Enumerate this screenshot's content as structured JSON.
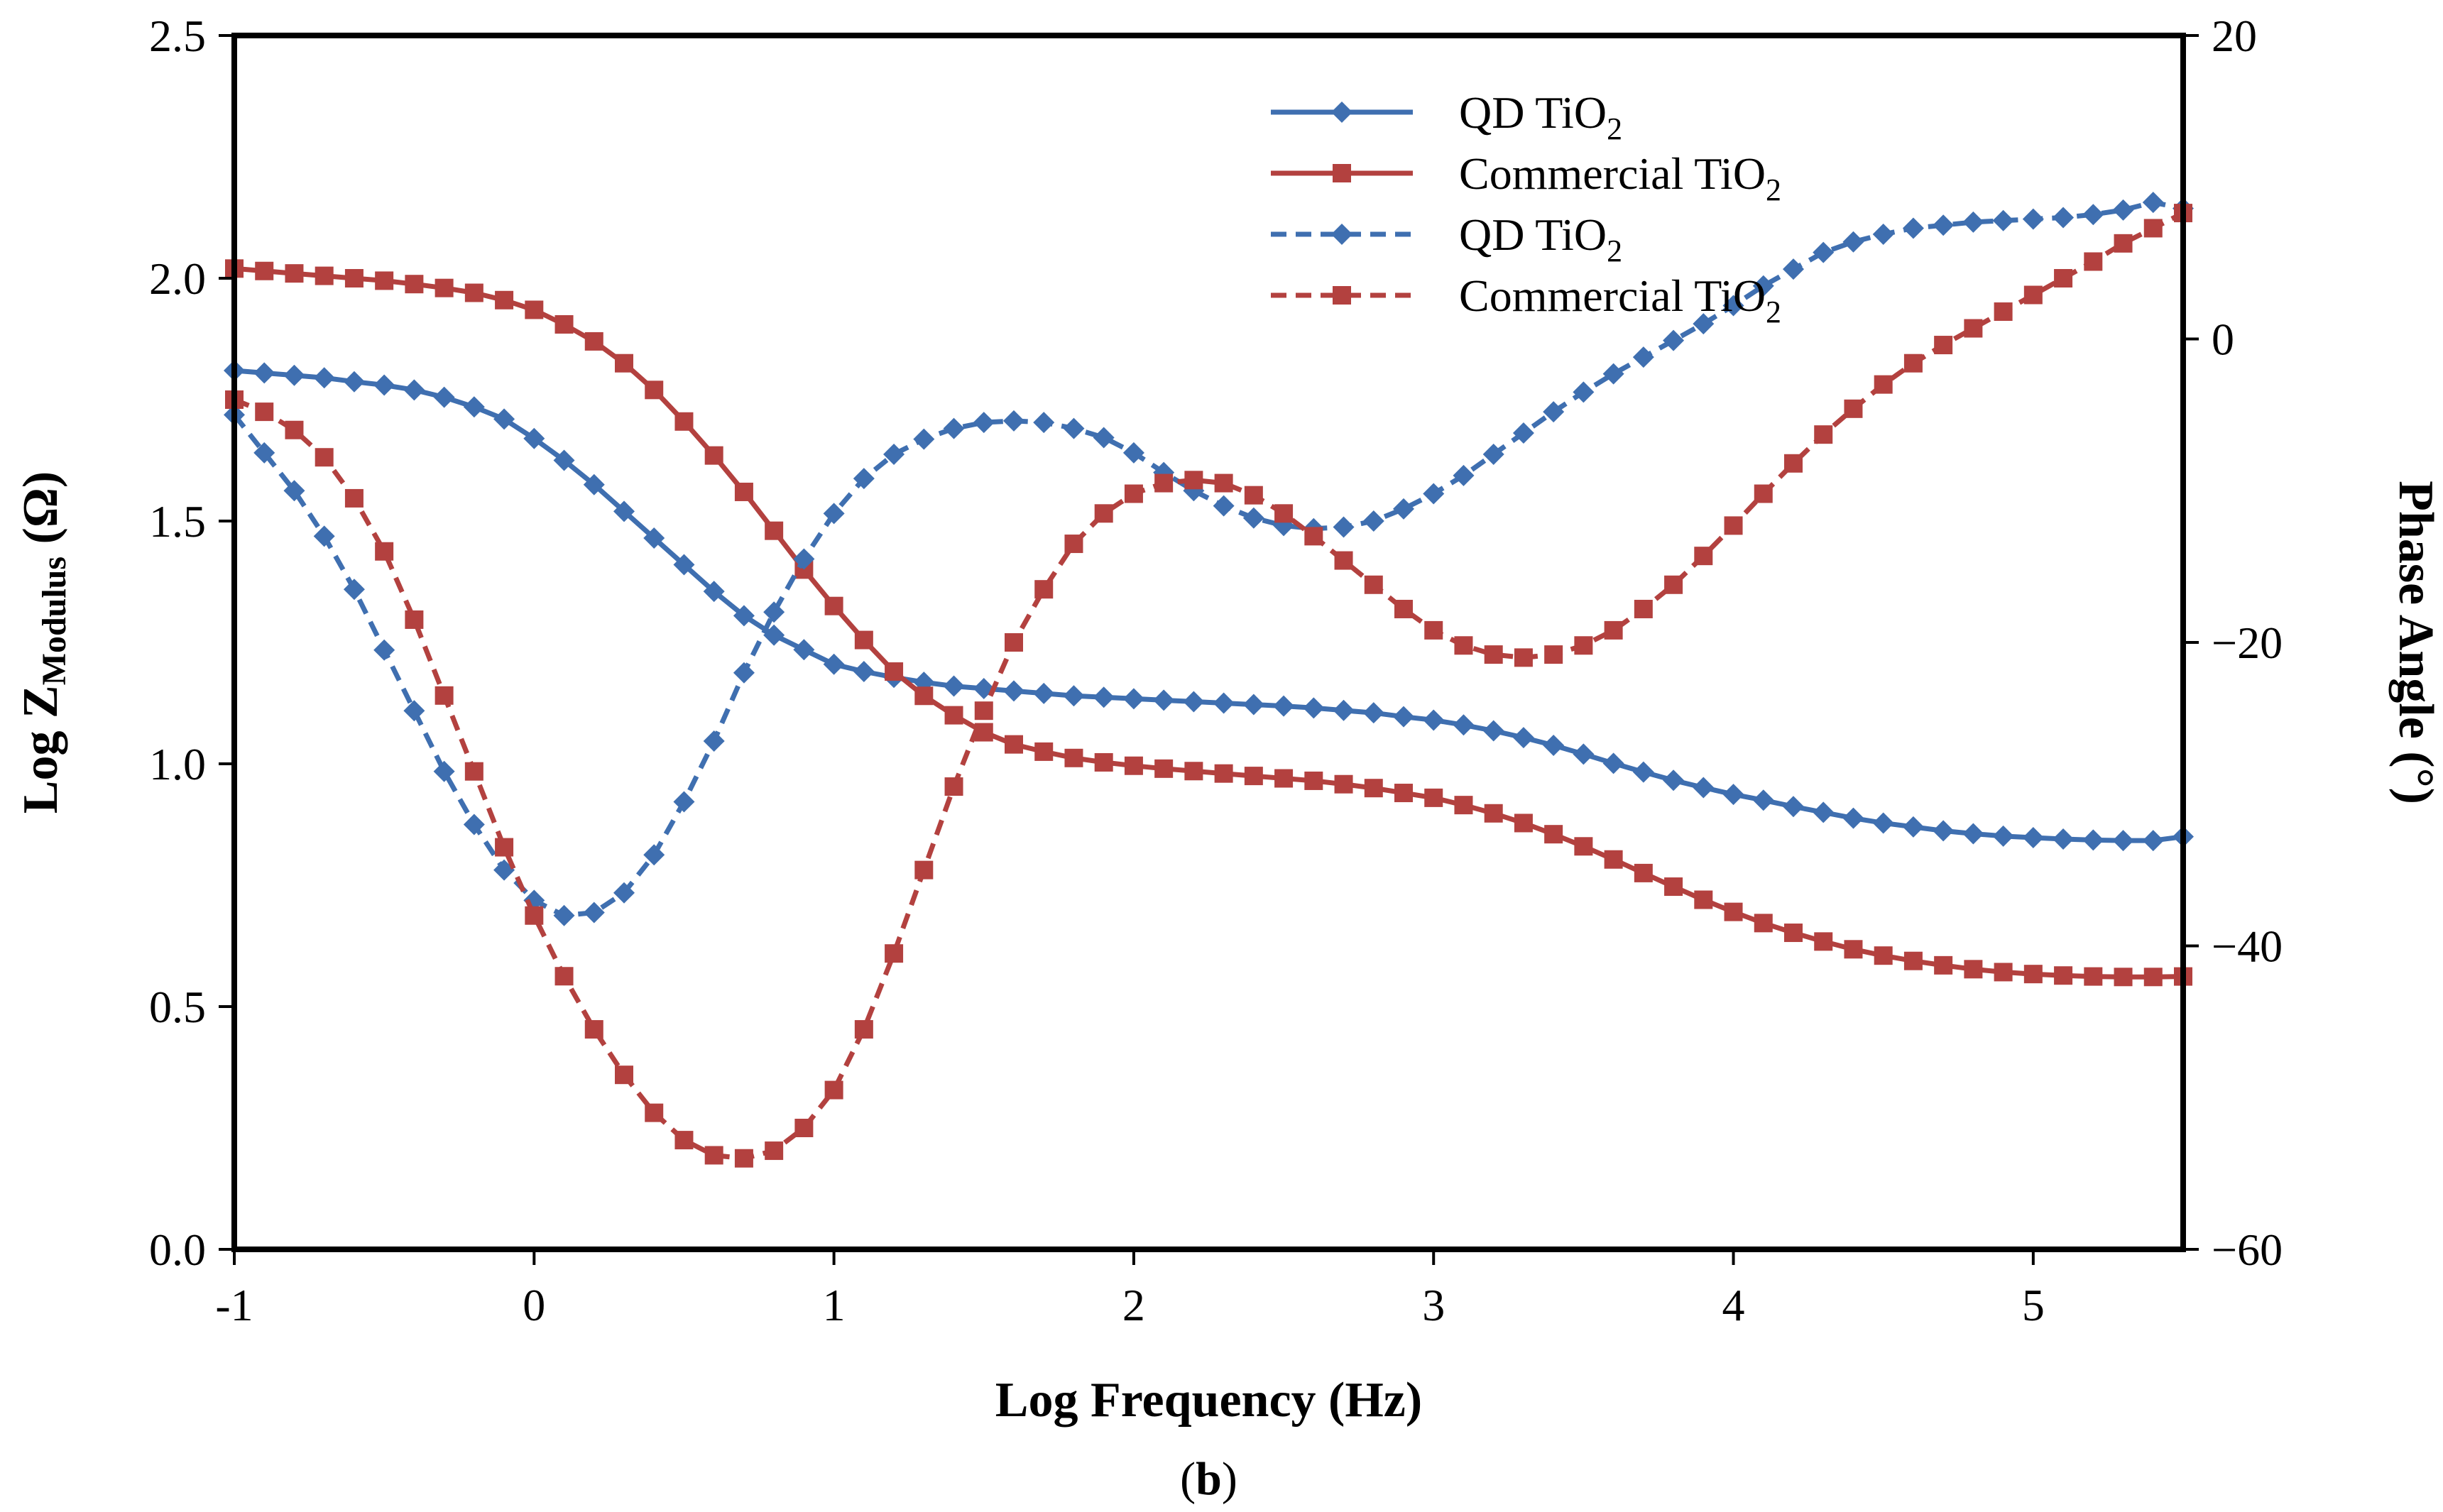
{
  "chart_data": {
    "type": "line",
    "panel_label": "b",
    "xlabel": "Log Frequency (Hz)",
    "ylabel_left": {
      "base": "Log Z",
      "subscript": "Modulus",
      "suffix": " (Ω)"
    },
    "ylabel_right": "Phase Angle (°)",
    "xlim": [
      -1,
      5.5
    ],
    "ylim_left": [
      0,
      2.5
    ],
    "ylim_right": [
      -60,
      20
    ],
    "x_ticks": [
      -1,
      0,
      1,
      2,
      3,
      4,
      5
    ],
    "x_tick_labels": [
      "-1",
      "0",
      "1",
      "2",
      "3",
      "4",
      "5"
    ],
    "y_left_ticks": [
      0,
      0.5,
      1,
      1.5,
      2,
      2.5
    ],
    "y_left_tick_labels": [
      "0.0",
      "0.5",
      "1.0",
      "1.5",
      "2.0",
      "2.5"
    ],
    "y_right_ticks": [
      -60,
      -40,
      -20,
      0,
      20
    ],
    "y_right_tick_labels": [
      "−60",
      "−40",
      "−20",
      "0",
      "20"
    ],
    "grid": false,
    "legend_position": "top-right",
    "colors": {
      "blue": "#3f6fb0",
      "red": "#b3413f"
    },
    "series": [
      {
        "id": "qd-modulus",
        "name": "QD TiO",
        "name_sub": "2",
        "axis": "left",
        "style": "solid",
        "marker": "diamond",
        "color": "#3f6fb0",
        "points": [
          [
            -1,
            1.81
          ],
          [
            -0.9,
            1.805
          ],
          [
            -0.8,
            1.8
          ],
          [
            -0.7,
            1.795
          ],
          [
            -0.6,
            1.787
          ],
          [
            -0.5,
            1.78
          ],
          [
            -0.4,
            1.77
          ],
          [
            -0.3,
            1.755
          ],
          [
            -0.2,
            1.735
          ],
          [
            -0.1,
            1.71
          ],
          [
            0,
            1.67
          ],
          [
            0.1,
            1.625
          ],
          [
            0.2,
            1.575
          ],
          [
            0.3,
            1.52
          ],
          [
            0.4,
            1.465
          ],
          [
            0.5,
            1.41
          ],
          [
            0.6,
            1.355
          ],
          [
            0.7,
            1.305
          ],
          [
            0.8,
            1.265
          ],
          [
            0.9,
            1.235
          ],
          [
            1,
            1.205
          ],
          [
            1.1,
            1.19
          ],
          [
            1.2,
            1.178
          ],
          [
            1.3,
            1.168
          ],
          [
            1.4,
            1.16
          ],
          [
            1.5,
            1.155
          ],
          [
            1.6,
            1.15
          ],
          [
            1.7,
            1.145
          ],
          [
            1.8,
            1.14
          ],
          [
            1.9,
            1.137
          ],
          [
            2,
            1.134
          ],
          [
            2.1,
            1.131
          ],
          [
            2.2,
            1.128
          ],
          [
            2.3,
            1.125
          ],
          [
            2.4,
            1.122
          ],
          [
            2.5,
            1.119
          ],
          [
            2.6,
            1.115
          ],
          [
            2.7,
            1.11
          ],
          [
            2.8,
            1.105
          ],
          [
            2.9,
            1.097
          ],
          [
            3,
            1.09
          ],
          [
            3.1,
            1.08
          ],
          [
            3.2,
            1.068
          ],
          [
            3.3,
            1.054
          ],
          [
            3.4,
            1.038
          ],
          [
            3.5,
            1.02
          ],
          [
            3.6,
            1.001
          ],
          [
            3.7,
            0.983
          ],
          [
            3.8,
            0.966
          ],
          [
            3.9,
            0.951
          ],
          [
            4,
            0.937
          ],
          [
            4.1,
            0.925
          ],
          [
            4.2,
            0.912
          ],
          [
            4.3,
            0.9
          ],
          [
            4.4,
            0.888
          ],
          [
            4.5,
            0.878
          ],
          [
            4.6,
            0.87
          ],
          [
            4.7,
            0.862
          ],
          [
            4.8,
            0.856
          ],
          [
            4.9,
            0.851
          ],
          [
            5,
            0.848
          ],
          [
            5.1,
            0.845
          ],
          [
            5.2,
            0.843
          ],
          [
            5.3,
            0.842
          ],
          [
            5.4,
            0.842
          ],
          [
            5.5,
            0.85
          ]
        ]
      },
      {
        "id": "commercial-modulus",
        "name": "Commercial TiO",
        "name_sub": "2",
        "axis": "left",
        "style": "solid",
        "marker": "square",
        "color": "#b3413f",
        "points": [
          [
            -1,
            2.02
          ],
          [
            -0.9,
            2.015
          ],
          [
            -0.8,
            2.01
          ],
          [
            -0.7,
            2.005
          ],
          [
            -0.6,
            2
          ],
          [
            -0.5,
            1.995
          ],
          [
            -0.4,
            1.988
          ],
          [
            -0.3,
            1.98
          ],
          [
            -0.2,
            1.97
          ],
          [
            -0.1,
            1.955
          ],
          [
            0,
            1.935
          ],
          [
            0.1,
            1.905
          ],
          [
            0.2,
            1.87
          ],
          [
            0.3,
            1.825
          ],
          [
            0.4,
            1.77
          ],
          [
            0.5,
            1.705
          ],
          [
            0.6,
            1.635
          ],
          [
            0.7,
            1.56
          ],
          [
            0.8,
            1.48
          ],
          [
            0.9,
            1.4
          ],
          [
            1,
            1.325
          ],
          [
            1.1,
            1.255
          ],
          [
            1.2,
            1.19
          ],
          [
            1.3,
            1.14
          ],
          [
            1.4,
            1.1
          ],
          [
            1.5,
            1.065
          ],
          [
            1.6,
            1.04
          ],
          [
            1.7,
            1.025
          ],
          [
            1.8,
            1.012
          ],
          [
            1.9,
            1.003
          ],
          [
            2,
            0.996
          ],
          [
            2.1,
            0.99
          ],
          [
            2.2,
            0.985
          ],
          [
            2.3,
            0.98
          ],
          [
            2.4,
            0.975
          ],
          [
            2.5,
            0.97
          ],
          [
            2.6,
            0.965
          ],
          [
            2.7,
            0.958
          ],
          [
            2.8,
            0.95
          ],
          [
            2.9,
            0.94
          ],
          [
            3,
            0.93
          ],
          [
            3.1,
            0.915
          ],
          [
            3.2,
            0.898
          ],
          [
            3.3,
            0.878
          ],
          [
            3.4,
            0.855
          ],
          [
            3.5,
            0.83
          ],
          [
            3.6,
            0.803
          ],
          [
            3.7,
            0.775
          ],
          [
            3.8,
            0.747
          ],
          [
            3.9,
            0.72
          ],
          [
            4,
            0.695
          ],
          [
            4.1,
            0.672
          ],
          [
            4.2,
            0.652
          ],
          [
            4.3,
            0.634
          ],
          [
            4.4,
            0.618
          ],
          [
            4.5,
            0.605
          ],
          [
            4.6,
            0.594
          ],
          [
            4.7,
            0.585
          ],
          [
            4.8,
            0.577
          ],
          [
            4.9,
            0.571
          ],
          [
            5,
            0.567
          ],
          [
            5.1,
            0.564
          ],
          [
            5.2,
            0.562
          ],
          [
            5.3,
            0.561
          ],
          [
            5.4,
            0.561
          ],
          [
            5.5,
            0.562
          ]
        ]
      },
      {
        "id": "qd-phase",
        "name": "QD TiO",
        "name_sub": "2",
        "axis": "right",
        "style": "dashed",
        "marker": "diamond",
        "color": "#3f6fb0",
        "points": [
          [
            -1,
            -5
          ],
          [
            -0.9,
            -7.5
          ],
          [
            -0.8,
            -10
          ],
          [
            -0.7,
            -13
          ],
          [
            -0.6,
            -16.5
          ],
          [
            -0.5,
            -20.5
          ],
          [
            -0.4,
            -24.5
          ],
          [
            -0.3,
            -28.5
          ],
          [
            -0.2,
            -32
          ],
          [
            -0.1,
            -35
          ],
          [
            0,
            -37
          ],
          [
            0.1,
            -38
          ],
          [
            0.2,
            -37.8
          ],
          [
            0.3,
            -36.5
          ],
          [
            0.4,
            -34
          ],
          [
            0.5,
            -30.5
          ],
          [
            0.6,
            -26.5
          ],
          [
            0.7,
            -22
          ],
          [
            0.8,
            -18
          ],
          [
            0.9,
            -14.5
          ],
          [
            1,
            -11.5
          ],
          [
            1.1,
            -9.2
          ],
          [
            1.2,
            -7.6
          ],
          [
            1.3,
            -6.6
          ],
          [
            1.4,
            -5.9
          ],
          [
            1.5,
            -5.5
          ],
          [
            1.6,
            -5.4
          ],
          [
            1.7,
            -5.5
          ],
          [
            1.8,
            -5.9
          ],
          [
            1.9,
            -6.5
          ],
          [
            2,
            -7.5
          ],
          [
            2.1,
            -8.8
          ],
          [
            2.2,
            -10
          ],
          [
            2.3,
            -11
          ],
          [
            2.4,
            -11.8
          ],
          [
            2.5,
            -12.3
          ],
          [
            2.6,
            -12.5
          ],
          [
            2.7,
            -12.4
          ],
          [
            2.8,
            -12
          ],
          [
            2.9,
            -11.2
          ],
          [
            3,
            -10.2
          ],
          [
            3.1,
            -9
          ],
          [
            3.2,
            -7.6
          ],
          [
            3.3,
            -6.2
          ],
          [
            3.4,
            -4.8
          ],
          [
            3.5,
            -3.5
          ],
          [
            3.6,
            -2.3
          ],
          [
            3.7,
            -1.2
          ],
          [
            3.8,
            -0.1
          ],
          [
            3.9,
            1
          ],
          [
            4,
            2.2
          ],
          [
            4.1,
            3.5
          ],
          [
            4.2,
            4.6
          ],
          [
            4.3,
            5.7
          ],
          [
            4.4,
            6.4
          ],
          [
            4.5,
            6.9
          ],
          [
            4.6,
            7.3
          ],
          [
            4.7,
            7.5
          ],
          [
            4.8,
            7.7
          ],
          [
            4.9,
            7.8
          ],
          [
            5,
            7.9
          ],
          [
            5.1,
            8
          ],
          [
            5.2,
            8.2
          ],
          [
            5.3,
            8.5
          ],
          [
            5.4,
            9
          ],
          [
            5.5,
            8.6
          ]
        ]
      },
      {
        "id": "commercial-phase",
        "name": "Commercial TiO",
        "name_sub": "2",
        "axis": "right",
        "style": "dashed",
        "marker": "square",
        "color": "#b3413f",
        "points": [
          [
            -1,
            -4
          ],
          [
            -0.9,
            -4.8
          ],
          [
            -0.8,
            -6
          ],
          [
            -0.7,
            -7.8
          ],
          [
            -0.6,
            -10.5
          ],
          [
            -0.5,
            -14
          ],
          [
            -0.4,
            -18.5
          ],
          [
            -0.3,
            -23.5
          ],
          [
            -0.2,
            -28.5
          ],
          [
            -0.1,
            -33.5
          ],
          [
            0,
            -38
          ],
          [
            0.1,
            -42
          ],
          [
            0.2,
            -45.5
          ],
          [
            0.3,
            -48.5
          ],
          [
            0.4,
            -51
          ],
          [
            0.5,
            -52.8
          ],
          [
            0.6,
            -53.8
          ],
          [
            0.7,
            -54
          ],
          [
            0.8,
            -53.5
          ],
          [
            0.9,
            -52
          ],
          [
            1,
            -49.5
          ],
          [
            1.1,
            -45.5
          ],
          [
            1.2,
            -40.5
          ],
          [
            1.3,
            -35
          ],
          [
            1.4,
            -29.5
          ],
          [
            1.5,
            -24.5
          ],
          [
            1.6,
            -20
          ],
          [
            1.7,
            -16.5
          ],
          [
            1.8,
            -13.5
          ],
          [
            1.9,
            -11.5
          ],
          [
            2,
            -10.2
          ],
          [
            2.1,
            -9.5
          ],
          [
            2.2,
            -9.3
          ],
          [
            2.3,
            -9.5
          ],
          [
            2.4,
            -10.3
          ],
          [
            2.5,
            -11.5
          ],
          [
            2.6,
            -13
          ],
          [
            2.7,
            -14.6
          ],
          [
            2.8,
            -16.2
          ],
          [
            2.9,
            -17.8
          ],
          [
            3,
            -19.2
          ],
          [
            3.1,
            -20.2
          ],
          [
            3.2,
            -20.8
          ],
          [
            3.3,
            -21
          ],
          [
            3.4,
            -20.8
          ],
          [
            3.5,
            -20.2
          ],
          [
            3.6,
            -19.2
          ],
          [
            3.7,
            -17.8
          ],
          [
            3.8,
            -16.2
          ],
          [
            3.9,
            -14.3
          ],
          [
            4,
            -12.3
          ],
          [
            4.1,
            -10.2
          ],
          [
            4.2,
            -8.2
          ],
          [
            4.3,
            -6.3
          ],
          [
            4.4,
            -4.6
          ],
          [
            4.5,
            -3
          ],
          [
            4.6,
            -1.6
          ],
          [
            4.7,
            -0.4
          ],
          [
            4.8,
            0.7
          ],
          [
            4.9,
            1.8
          ],
          [
            5,
            2.9
          ],
          [
            5.1,
            4
          ],
          [
            5.2,
            5.1
          ],
          [
            5.3,
            6.3
          ],
          [
            5.4,
            7.3
          ],
          [
            5.5,
            8.3
          ]
        ]
      }
    ]
  }
}
